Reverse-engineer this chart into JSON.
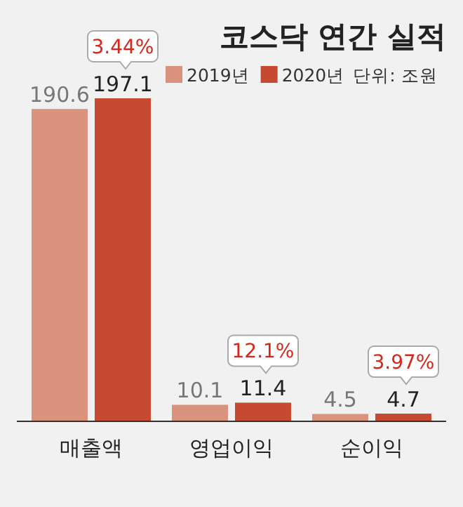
{
  "chart_data": {
    "type": "bar",
    "title": "코스닥 연간 실적",
    "categories": [
      "매출액",
      "영업이익",
      "순이익"
    ],
    "series": [
      {
        "name": "2019년",
        "color": "#d9927b",
        "values": [
          190.6,
          10.1,
          4.5
        ]
      },
      {
        "name": "2020년",
        "color": "#c64a32",
        "values": [
          197.1,
          11.4,
          4.7
        ]
      }
    ],
    "data_labels": true,
    "legend": "top right",
    "annotations": [
      "단위: 조원",
      {
        "text": "3.44%",
        "x": "매출액",
        "y": 197.1
      },
      {
        "text": "12.1%",
        "x": "영업이익",
        "y": 11.4
      },
      {
        "text": "3.97%",
        "x": "순이익",
        "y": 4.7
      }
    ]
  }
}
